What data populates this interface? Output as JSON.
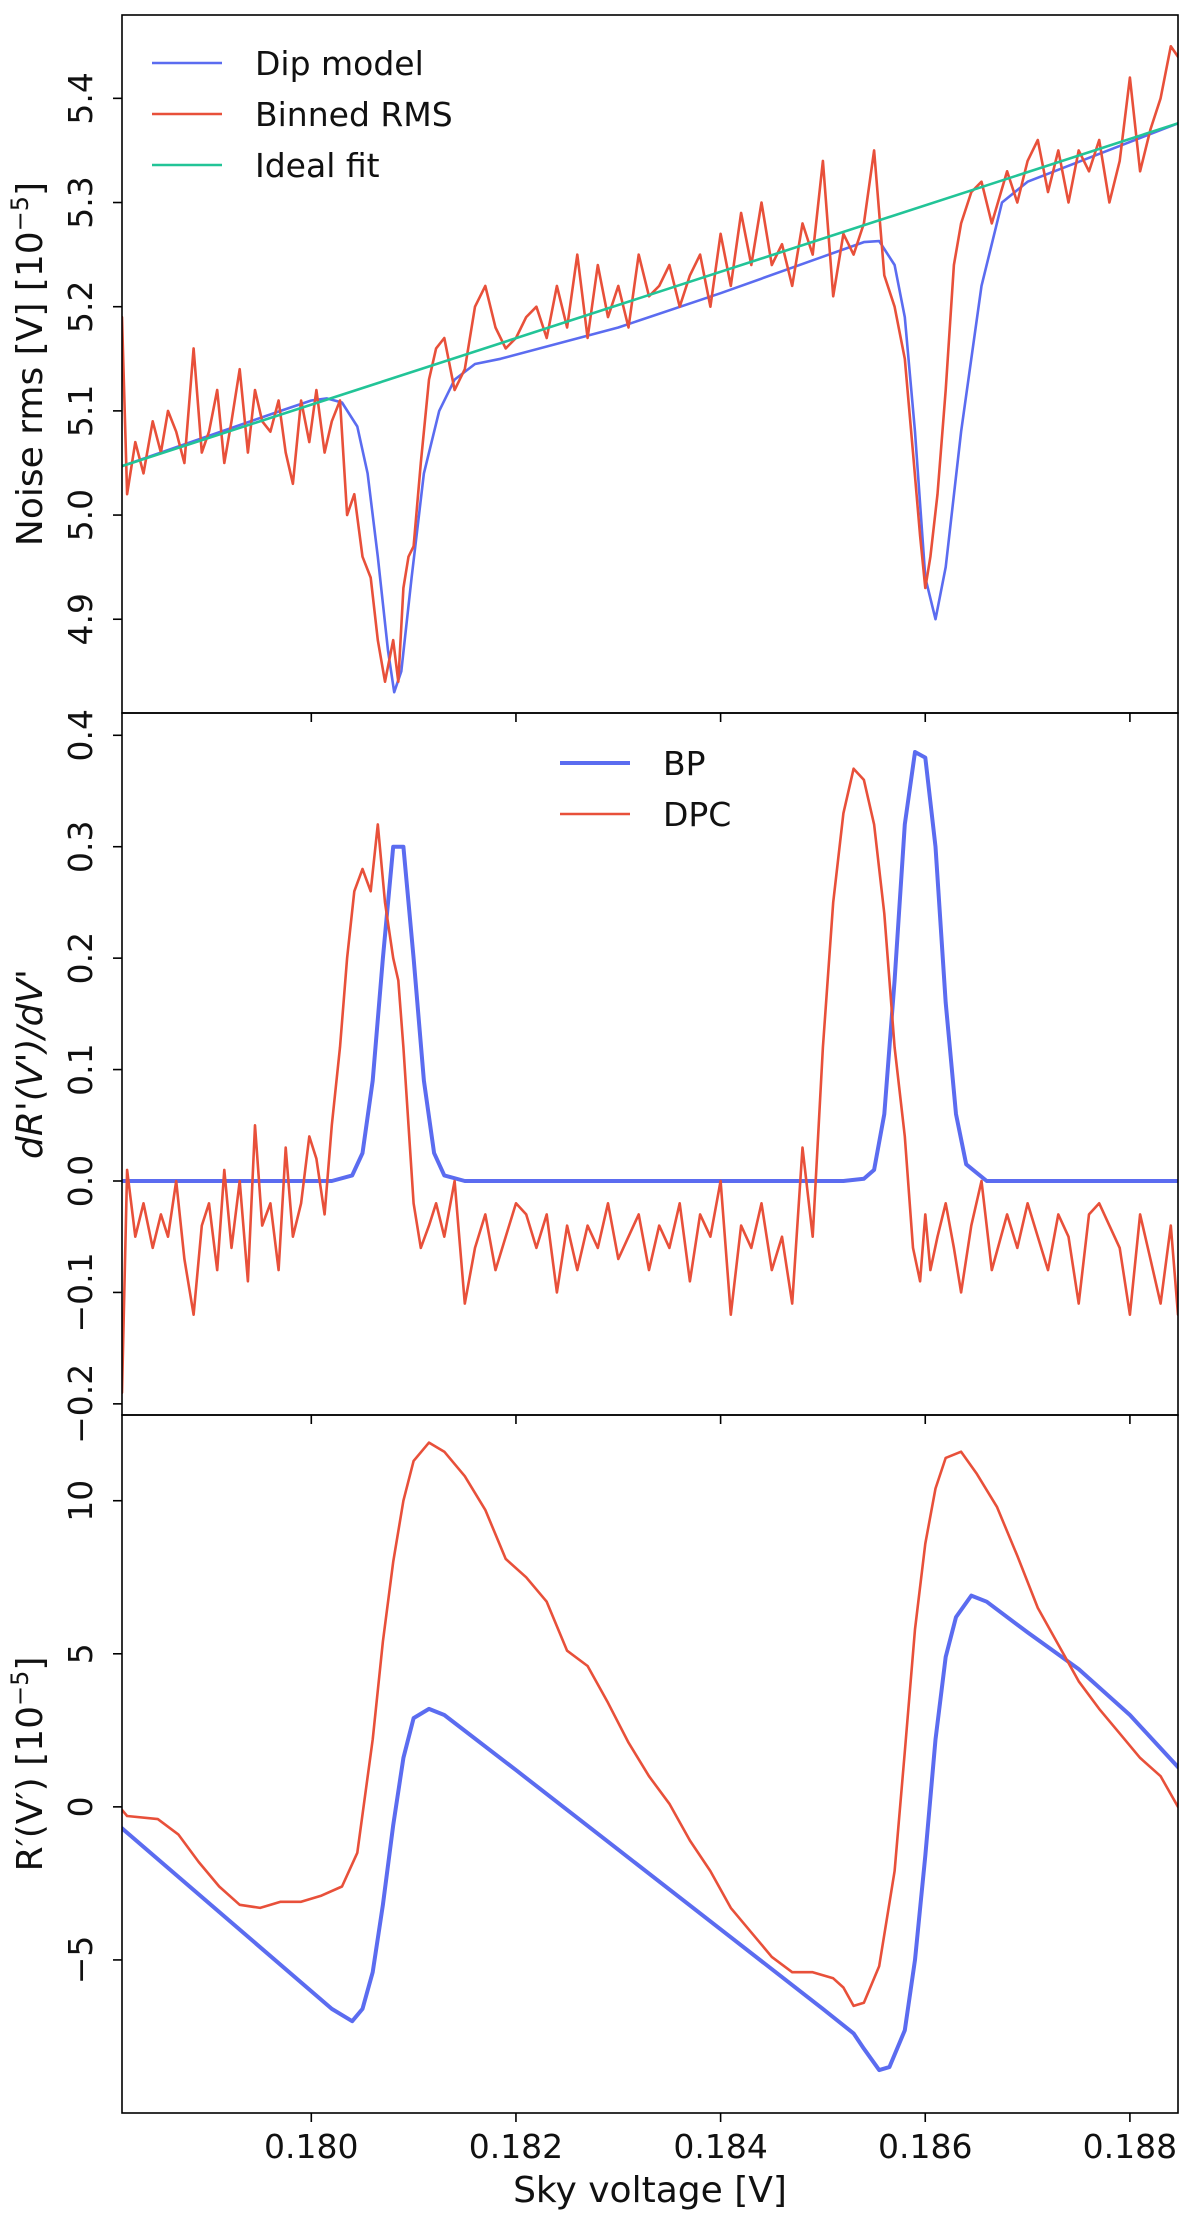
{
  "figure": {
    "xlabel": "Sky voltage [V]",
    "x_ticks": [
      0.18,
      0.182,
      0.184,
      0.186,
      0.188
    ],
    "x_tick_labels": [
      "0.180",
      "0.182",
      "0.184",
      "0.186",
      "0.188"
    ],
    "xlim": [
      0.17815,
      0.18847
    ]
  },
  "chart_data": [
    {
      "type": "line",
      "panel": "top",
      "ylabel": "Noise rms [V] [10^{-5}]",
      "ylabel_parts": {
        "main": "Noise rms [V] [10",
        "exp": "−5",
        "close": "]"
      },
      "ylim": [
        4.81,
        5.48
      ],
      "y_ticks": [
        4.9,
        5.0,
        5.1,
        5.2,
        5.3,
        5.4
      ],
      "y_tick_labels": [
        "4.9",
        "5.0",
        "5.1",
        "5.2",
        "5.3",
        "5.4"
      ],
      "legend_position": "upper-left",
      "series": [
        {
          "name": "Dip model",
          "color": "#5b6cf0",
          "width": 2.6,
          "x": [
            0.17815,
            0.1797,
            0.18,
            0.18015,
            0.1803,
            0.18045,
            0.18055,
            0.18065,
            0.18075,
            0.18081,
            0.18088,
            0.18098,
            0.1811,
            0.18125,
            0.1814,
            0.1816,
            0.18185,
            0.183,
            0.184,
            0.185,
            0.1854,
            0.18555,
            0.1857,
            0.1858,
            0.1859,
            0.186,
            0.1861,
            0.1862,
            0.18635,
            0.18655,
            0.18675,
            0.187,
            0.18847
          ],
          "y": [
            5.047,
            5.1,
            5.11,
            5.112,
            5.108,
            5.085,
            5.04,
            4.96,
            4.87,
            4.83,
            4.85,
            4.94,
            5.04,
            5.1,
            5.13,
            5.145,
            5.15,
            5.18,
            5.213,
            5.248,
            5.262,
            5.263,
            5.24,
            5.19,
            5.08,
            4.94,
            4.9,
            4.95,
            5.08,
            5.22,
            5.3,
            5.32,
            5.376
          ]
        },
        {
          "name": "Binned RMS",
          "color": "#e8503a",
          "width": 2.6,
          "x": [
            0.17815,
            0.1782,
            0.17828,
            0.17836,
            0.17845,
            0.17853,
            0.1786,
            0.17868,
            0.17876,
            0.17885,
            0.17893,
            0.179,
            0.17908,
            0.17915,
            0.17922,
            0.1793,
            0.17938,
            0.17945,
            0.17952,
            0.1796,
            0.17968,
            0.17975,
            0.17982,
            0.1799,
            0.17998,
            0.18005,
            0.18013,
            0.1802,
            0.18028,
            0.18035,
            0.18042,
            0.1805,
            0.18058,
            0.18065,
            0.18072,
            0.1808,
            0.18085,
            0.1809,
            0.18095,
            0.181,
            0.18107,
            0.18115,
            0.18122,
            0.1813,
            0.1814,
            0.1815,
            0.1816,
            0.1817,
            0.1818,
            0.1819,
            0.182,
            0.1821,
            0.1822,
            0.1823,
            0.1824,
            0.1825,
            0.1826,
            0.1827,
            0.1828,
            0.1829,
            0.183,
            0.1831,
            0.1832,
            0.1833,
            0.1834,
            0.1835,
            0.1836,
            0.1837,
            0.1838,
            0.1839,
            0.184,
            0.1841,
            0.1842,
            0.1843,
            0.1844,
            0.1845,
            0.1846,
            0.1847,
            0.1848,
            0.1849,
            0.185,
            0.1851,
            0.1852,
            0.1853,
            0.1854,
            0.1855,
            0.1856,
            0.1857,
            0.1858,
            0.18588,
            0.18595,
            0.186,
            0.18605,
            0.18612,
            0.1862,
            0.18628,
            0.18635,
            0.18645,
            0.18655,
            0.18665,
            0.1868,
            0.1869,
            0.187,
            0.1871,
            0.1872,
            0.1873,
            0.1874,
            0.1875,
            0.1876,
            0.1877,
            0.1878,
            0.1879,
            0.188,
            0.1881,
            0.1882,
            0.1883,
            0.1884,
            0.18847
          ],
          "y": [
            5.19,
            5.02,
            5.07,
            5.04,
            5.09,
            5.06,
            5.1,
            5.08,
            5.05,
            5.16,
            5.06,
            5.08,
            5.12,
            5.05,
            5.09,
            5.14,
            5.06,
            5.12,
            5.09,
            5.08,
            5.11,
            5.06,
            5.03,
            5.11,
            5.07,
            5.12,
            5.06,
            5.09,
            5.11,
            5.0,
            5.02,
            4.96,
            4.94,
            4.88,
            4.84,
            4.88,
            4.84,
            4.93,
            4.96,
            4.97,
            5.05,
            5.13,
            5.16,
            5.17,
            5.12,
            5.14,
            5.2,
            5.22,
            5.18,
            5.16,
            5.17,
            5.19,
            5.2,
            5.17,
            5.22,
            5.18,
            5.25,
            5.17,
            5.24,
            5.19,
            5.22,
            5.18,
            5.25,
            5.21,
            5.22,
            5.24,
            5.2,
            5.23,
            5.25,
            5.2,
            5.27,
            5.22,
            5.29,
            5.24,
            5.3,
            5.24,
            5.26,
            5.22,
            5.28,
            5.25,
            5.34,
            5.21,
            5.27,
            5.25,
            5.28,
            5.35,
            5.23,
            5.2,
            5.15,
            5.06,
            4.98,
            4.93,
            4.96,
            5.02,
            5.12,
            5.24,
            5.28,
            5.31,
            5.32,
            5.28,
            5.33,
            5.3,
            5.34,
            5.36,
            5.31,
            5.35,
            5.3,
            5.35,
            5.33,
            5.36,
            5.3,
            5.34,
            5.42,
            5.33,
            5.37,
            5.4,
            5.45,
            5.44
          ]
        },
        {
          "name": "Ideal fit",
          "color": "#22c497",
          "width": 2.6,
          "x": [
            0.17815,
            0.18847
          ],
          "y": [
            5.047,
            5.376
          ]
        }
      ]
    },
    {
      "type": "line",
      "panel": "middle",
      "ylabel": "dR'(V')/dV'",
      "ylim": [
        -0.21,
        0.42
      ],
      "y_ticks": [
        -0.2,
        -0.1,
        0.0,
        0.1,
        0.2,
        0.3,
        0.4
      ],
      "y_tick_labels": [
        "−0.2",
        "−0.1",
        "0.0",
        "0.1",
        "0.2",
        "0.3",
        "0.4"
      ],
      "legend_position": "upper-center",
      "series": [
        {
          "name": "BP",
          "color": "#5b6cf0",
          "width": 4,
          "x": [
            0.17815,
            0.1802,
            0.1804,
            0.1805,
            0.1806,
            0.1807,
            0.1808,
            0.1809,
            0.181,
            0.1811,
            0.1812,
            0.1813,
            0.1815,
            0.1852,
            0.1854,
            0.1855,
            0.1856,
            0.1857,
            0.1858,
            0.1859,
            0.186,
            0.1861,
            0.1862,
            0.1863,
            0.1864,
            0.1866,
            0.18847
          ],
          "y": [
            0.0,
            0.0,
            0.005,
            0.025,
            0.09,
            0.2,
            0.3,
            0.3,
            0.2,
            0.09,
            0.025,
            0.005,
            0.0,
            0.0,
            0.002,
            0.01,
            0.06,
            0.18,
            0.32,
            0.385,
            0.38,
            0.3,
            0.16,
            0.06,
            0.015,
            0.0,
            0.0
          ]
        },
        {
          "name": "DPC",
          "color": "#e8503a",
          "width": 2.6,
          "x": [
            0.17815,
            0.1782,
            0.17828,
            0.17836,
            0.17845,
            0.17853,
            0.1786,
            0.17868,
            0.17876,
            0.17885,
            0.17893,
            0.179,
            0.17908,
            0.17915,
            0.17922,
            0.1793,
            0.17938,
            0.17945,
            0.17952,
            0.1796,
            0.17968,
            0.17975,
            0.17982,
            0.1799,
            0.17998,
            0.18005,
            0.18013,
            0.1802,
            0.18028,
            0.18035,
            0.18042,
            0.1805,
            0.18058,
            0.18065,
            0.18072,
            0.1808,
            0.18085,
            0.1809,
            0.18095,
            0.181,
            0.18107,
            0.18115,
            0.18122,
            0.1813,
            0.1814,
            0.1815,
            0.1816,
            0.1817,
            0.1818,
            0.1819,
            0.182,
            0.1821,
            0.1822,
            0.1823,
            0.1824,
            0.1825,
            0.1826,
            0.1827,
            0.1828,
            0.1829,
            0.183,
            0.1831,
            0.1832,
            0.1833,
            0.1834,
            0.1835,
            0.1836,
            0.1837,
            0.1838,
            0.1839,
            0.184,
            0.1841,
            0.1842,
            0.1843,
            0.1844,
            0.1845,
            0.1846,
            0.1847,
            0.1848,
            0.1849,
            0.185,
            0.1851,
            0.1852,
            0.1853,
            0.1854,
            0.1855,
            0.1856,
            0.1857,
            0.1858,
            0.18588,
            0.18595,
            0.186,
            0.18605,
            0.18612,
            0.1862,
            0.18628,
            0.18635,
            0.18645,
            0.18655,
            0.18665,
            0.1868,
            0.1869,
            0.187,
            0.1871,
            0.1872,
            0.1873,
            0.1874,
            0.1875,
            0.1876,
            0.1877,
            0.1878,
            0.1879,
            0.188,
            0.1881,
            0.1882,
            0.1883,
            0.1884,
            0.18847
          ],
          "y": [
            -0.19,
            0.01,
            -0.05,
            -0.02,
            -0.06,
            -0.03,
            -0.05,
            0.0,
            -0.07,
            -0.12,
            -0.04,
            -0.02,
            -0.08,
            0.01,
            -0.06,
            0.0,
            -0.09,
            0.05,
            -0.04,
            -0.02,
            -0.08,
            0.03,
            -0.05,
            -0.02,
            0.04,
            0.02,
            -0.03,
            0.05,
            0.12,
            0.2,
            0.26,
            0.28,
            0.26,
            0.32,
            0.25,
            0.2,
            0.18,
            0.12,
            0.05,
            -0.02,
            -0.06,
            -0.04,
            -0.02,
            -0.05,
            0.0,
            -0.11,
            -0.06,
            -0.03,
            -0.08,
            -0.05,
            -0.02,
            -0.03,
            -0.06,
            -0.03,
            -0.1,
            -0.04,
            -0.08,
            -0.04,
            -0.06,
            -0.02,
            -0.07,
            -0.05,
            -0.03,
            -0.08,
            -0.04,
            -0.06,
            -0.02,
            -0.09,
            -0.03,
            -0.05,
            0.0,
            -0.12,
            -0.04,
            -0.06,
            -0.02,
            -0.08,
            -0.05,
            -0.11,
            0.03,
            -0.05,
            0.12,
            0.25,
            0.33,
            0.37,
            0.36,
            0.32,
            0.24,
            0.12,
            0.04,
            -0.06,
            -0.09,
            -0.03,
            -0.08,
            -0.05,
            -0.02,
            -0.06,
            -0.1,
            -0.04,
            0.0,
            -0.08,
            -0.03,
            -0.06,
            -0.02,
            -0.05,
            -0.08,
            -0.03,
            -0.05,
            -0.11,
            -0.03,
            -0.02,
            -0.04,
            -0.06,
            -0.12,
            -0.03,
            -0.07,
            -0.11,
            -0.04,
            -0.12
          ]
        }
      ]
    },
    {
      "type": "line",
      "panel": "bottom",
      "ylabel": "R'(V') [10^{-5}]",
      "ylabel_parts": {
        "main": "R′(V′) [10",
        "exp": "−5",
        "close": "]"
      },
      "ylim": [
        -10.0,
        12.8
      ],
      "y_ticks": [
        -5,
        0,
        5,
        10
      ],
      "y_tick_labels": [
        "−5",
        "0",
        "5",
        "10"
      ],
      "series": [
        {
          "name": "BP",
          "color": "#5b6cf0",
          "width": 4,
          "x": [
            0.17815,
            0.1802,
            0.1804,
            0.1805,
            0.1806,
            0.1807,
            0.1808,
            0.1809,
            0.181,
            0.18115,
            0.1813,
            0.182,
            0.183,
            0.184,
            0.185,
            0.1853,
            0.1854,
            0.18555,
            0.18565,
            0.1858,
            0.1859,
            0.186,
            0.1861,
            0.1862,
            0.1863,
            0.18645,
            0.1866,
            0.187,
            0.1875,
            0.188,
            0.18847
          ],
          "y": [
            -0.7,
            -6.6,
            -7.0,
            -6.6,
            -5.4,
            -3.2,
            -0.6,
            1.6,
            2.9,
            3.2,
            3.0,
            1.2,
            -1.4,
            -4.0,
            -6.6,
            -7.4,
            -7.9,
            -8.6,
            -8.5,
            -7.3,
            -5.0,
            -1.6,
            2.2,
            4.9,
            6.2,
            6.9,
            6.7,
            5.7,
            4.5,
            3.0,
            1.3
          ]
        },
        {
          "name": "DPC",
          "color": "#e8503a",
          "width": 2.6,
          "x": [
            0.17815,
            0.1782,
            0.1785,
            0.1787,
            0.1789,
            0.1791,
            0.1793,
            0.1795,
            0.1797,
            0.1799,
            0.1801,
            0.1803,
            0.18045,
            0.1806,
            0.1807,
            0.1808,
            0.1809,
            0.181,
            0.18115,
            0.1813,
            0.1815,
            0.1817,
            0.1819,
            0.1821,
            0.1823,
            0.1825,
            0.1827,
            0.1829,
            0.1831,
            0.1833,
            0.1835,
            0.1837,
            0.1839,
            0.1841,
            0.1843,
            0.1845,
            0.1847,
            0.1849,
            0.1851,
            0.1852,
            0.1853,
            0.1854,
            0.18555,
            0.1857,
            0.1858,
            0.1859,
            0.186,
            0.1861,
            0.1862,
            0.18635,
            0.1865,
            0.1867,
            0.1869,
            0.1871,
            0.1873,
            0.1875,
            0.1877,
            0.1879,
            0.1881,
            0.1883,
            0.18847
          ],
          "y": [
            -0.1,
            -0.3,
            -0.4,
            -0.9,
            -1.8,
            -2.6,
            -3.2,
            -3.3,
            -3.1,
            -3.1,
            -2.9,
            -2.6,
            -1.5,
            2.2,
            5.4,
            8.0,
            10.0,
            11.3,
            11.9,
            11.6,
            10.8,
            9.7,
            8.1,
            7.5,
            6.7,
            5.1,
            4.6,
            3.4,
            2.1,
            1.0,
            0.1,
            -1.1,
            -2.1,
            -3.3,
            -4.1,
            -4.9,
            -5.4,
            -5.4,
            -5.6,
            -5.9,
            -6.5,
            -6.4,
            -5.2,
            -2.1,
            1.8,
            5.8,
            8.6,
            10.4,
            11.4,
            11.6,
            10.9,
            9.8,
            8.2,
            6.5,
            5.3,
            4.1,
            3.2,
            2.4,
            1.6,
            1.0,
            0.0
          ]
        }
      ]
    }
  ]
}
